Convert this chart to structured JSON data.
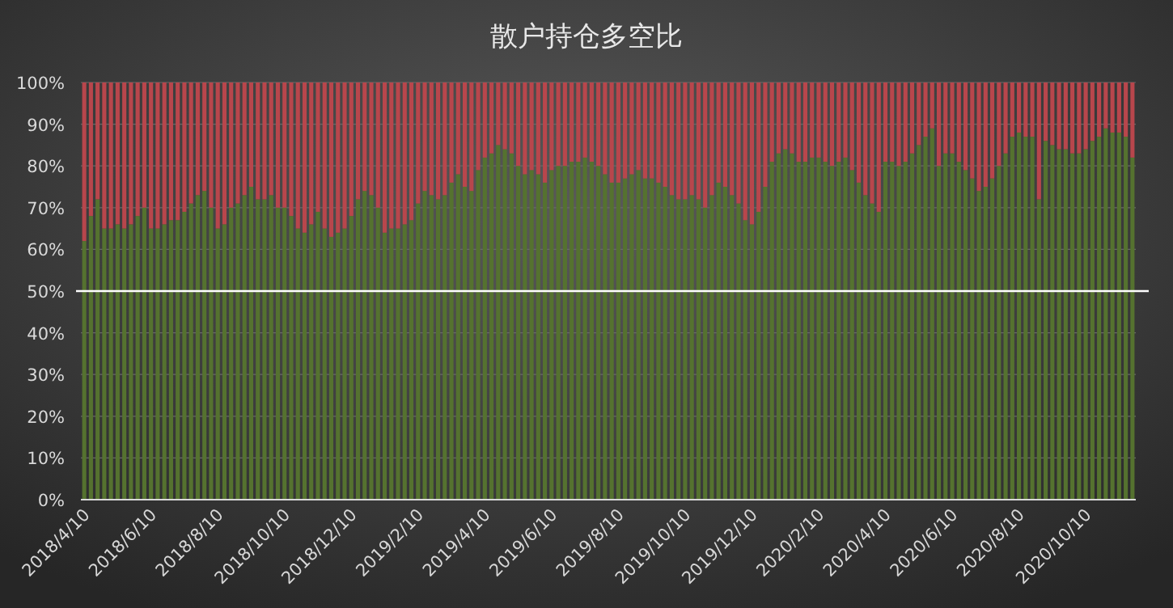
{
  "chart_data": {
    "type": "bar",
    "title": "散户持仓多空比",
    "stacked": true,
    "grid": "y",
    "ylim": [
      0,
      100
    ],
    "yticks": [
      {
        "value": 0,
        "label": "0%"
      },
      {
        "value": 10,
        "label": "10%"
      },
      {
        "value": 20,
        "label": "20%"
      },
      {
        "value": 30,
        "label": "30%"
      },
      {
        "value": 40,
        "label": "40%"
      },
      {
        "value": 50,
        "label": "50%"
      },
      {
        "value": 60,
        "label": "60%"
      },
      {
        "value": 70,
        "label": "70%"
      },
      {
        "value": 80,
        "label": "80%"
      },
      {
        "value": 90,
        "label": "90%"
      },
      {
        "value": 100,
        "label": "100%"
      }
    ],
    "ref_lines": [
      {
        "axis": "y",
        "value": 50,
        "color": "#ffffff"
      }
    ],
    "categories": [
      "2018/4/10",
      null,
      null,
      null,
      null,
      null,
      null,
      null,
      null,
      null,
      "2018/6/10",
      null,
      null,
      null,
      null,
      null,
      null,
      null,
      null,
      null,
      "2018/8/10",
      null,
      null,
      null,
      null,
      null,
      null,
      null,
      null,
      null,
      "2018/10/10",
      null,
      null,
      null,
      null,
      null,
      null,
      null,
      null,
      null,
      "2018/12/10",
      null,
      null,
      null,
      null,
      null,
      null,
      null,
      null,
      null,
      "2019/2/10",
      null,
      null,
      null,
      null,
      null,
      null,
      null,
      null,
      null,
      "2019/4/10",
      null,
      null,
      null,
      null,
      null,
      null,
      null,
      null,
      null,
      "2019/6/10",
      null,
      null,
      null,
      null,
      null,
      null,
      null,
      null,
      null,
      "2019/8/10",
      null,
      null,
      null,
      null,
      null,
      null,
      null,
      null,
      null,
      "2019/10/10",
      null,
      null,
      null,
      null,
      null,
      null,
      null,
      null,
      null,
      "2019/12/10",
      null,
      null,
      null,
      null,
      null,
      null,
      null,
      null,
      null,
      "2020/2/10",
      null,
      null,
      null,
      null,
      null,
      null,
      null,
      null,
      null,
      "2020/4/10",
      null,
      null,
      null,
      null,
      null,
      null,
      null,
      null,
      null,
      "2020/6/10",
      null,
      null,
      null,
      null,
      null,
      null,
      null,
      null,
      null,
      "2020/8/10",
      null,
      null,
      null,
      null,
      null,
      null,
      null,
      null,
      null,
      "2020/10/10",
      null,
      null,
      null,
      null,
      null,
      null,
      null
    ],
    "series": [
      {
        "color": "#55722f",
        "values": [
          62,
          68,
          72,
          65,
          65,
          66,
          65,
          66,
          68,
          70,
          65,
          65,
          66,
          67,
          67,
          69,
          71,
          73,
          74,
          70,
          65,
          66,
          70,
          71,
          73,
          75,
          72,
          72,
          73,
          70,
          70,
          68,
          65,
          64,
          66,
          69,
          65,
          63,
          64,
          65,
          68,
          72,
          74,
          73,
          70,
          64,
          65,
          65,
          66,
          67,
          71,
          74,
          73,
          72,
          73,
          76,
          78,
          75,
          74,
          79,
          82,
          83,
          85,
          84,
          83,
          80,
          78,
          79,
          78,
          76,
          79,
          80,
          80,
          81,
          81,
          82,
          81,
          80,
          78,
          76,
          76,
          77,
          78,
          79,
          77,
          77,
          76,
          75,
          73,
          72,
          72,
          73,
          72,
          70,
          73,
          76,
          75,
          73,
          71,
          67,
          66,
          69,
          75,
          81,
          83,
          84,
          83,
          81,
          81,
          82,
          82,
          81,
          80,
          81,
          82,
          79,
          76,
          73,
          71,
          69,
          81,
          81,
          80,
          81,
          83,
          85,
          87,
          89,
          80,
          83,
          83,
          81,
          79,
          77,
          74,
          75,
          77,
          80,
          83,
          87,
          88,
          87,
          87,
          72,
          86,
          85,
          84,
          84,
          83,
          83,
          84,
          86,
          87,
          89,
          88,
          88,
          87,
          82
        ]
      },
      {
        "color": "#b8464c",
        "values": [
          38,
          32,
          28,
          35,
          35,
          34,
          35,
          34,
          32,
          30,
          35,
          35,
          34,
          33,
          33,
          31,
          29,
          27,
          26,
          30,
          35,
          34,
          30,
          29,
          27,
          25,
          28,
          28,
          27,
          30,
          30,
          32,
          35,
          36,
          34,
          31,
          35,
          37,
          36,
          35,
          32,
          28,
          26,
          27,
          30,
          36,
          35,
          35,
          34,
          33,
          29,
          26,
          27,
          28,
          27,
          24,
          22,
          25,
          26,
          21,
          18,
          17,
          15,
          16,
          17,
          20,
          22,
          21,
          22,
          24,
          21,
          20,
          20,
          19,
          19,
          18,
          19,
          20,
          22,
          24,
          24,
          23,
          22,
          21,
          23,
          23,
          24,
          25,
          27,
          28,
          28,
          27,
          28,
          30,
          27,
          24,
          25,
          27,
          29,
          33,
          34,
          31,
          25,
          19,
          17,
          16,
          17,
          19,
          19,
          18,
          18,
          19,
          20,
          19,
          18,
          21,
          24,
          27,
          29,
          31,
          19,
          19,
          20,
          19,
          17,
          15,
          13,
          11,
          20,
          17,
          17,
          19,
          21,
          23,
          26,
          25,
          23,
          20,
          17,
          13,
          12,
          13,
          13,
          28,
          14,
          15,
          16,
          16,
          17,
          17,
          16,
          14,
          13,
          11,
          12,
          12,
          13,
          18
        ]
      }
    ]
  }
}
